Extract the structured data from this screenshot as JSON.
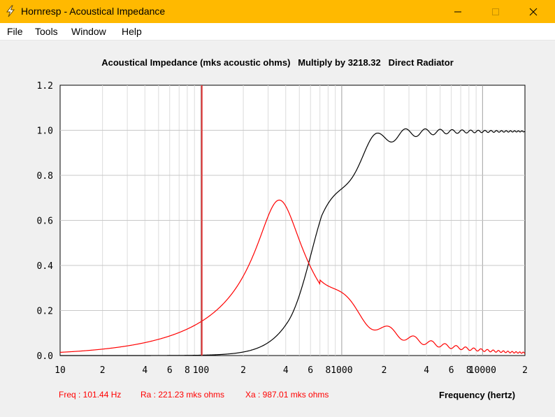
{
  "window": {
    "title": "Hornresp - Acoustical Impedance",
    "icon": "lightning-bolt-icon",
    "accent": "#ffb900"
  },
  "menu": [
    "File",
    "Tools",
    "Window",
    "Help"
  ],
  "chart_data": {
    "type": "line",
    "title": "Acoustical Impedance (mks acoustic ohms)   Multiply by 3218.32   Direct Radiator",
    "xlabel": "Frequency (hertz)",
    "ylabel": "",
    "xscale": "log",
    "xlim": [
      10,
      20000
    ],
    "ylim": [
      0,
      1.2
    ],
    "yticks": [
      "0.0",
      "0.2",
      "0.4",
      "0.6",
      "0.8",
      "1.0",
      "1.2"
    ],
    "xticks": [
      {
        "value": 10,
        "label": "10"
      },
      {
        "value": 20,
        "label": "2"
      },
      {
        "value": 40,
        "label": "4"
      },
      {
        "value": 60,
        "label": "6"
      },
      {
        "value": 80,
        "label": "8"
      },
      {
        "value": 100,
        "label": "100"
      },
      {
        "value": 200,
        "label": "2"
      },
      {
        "value": 400,
        "label": "4"
      },
      {
        "value": 600,
        "label": "6"
      },
      {
        "value": 800,
        "label": "8"
      },
      {
        "value": 1000,
        "label": "1000"
      },
      {
        "value": 2000,
        "label": "2"
      },
      {
        "value": 4000,
        "label": "4"
      },
      {
        "value": 6000,
        "label": "6"
      },
      {
        "value": 8000,
        "label": "8"
      },
      {
        "value": 10000,
        "label": "10000"
      },
      {
        "value": 20000,
        "label": "2"
      }
    ],
    "grid": true,
    "cursor_x": 101.44,
    "series": [
      {
        "color": "#000000"
      },
      {
        "color": "#ff0000"
      }
    ]
  },
  "readout": {
    "freq": "Freq : 101.44 Hz",
    "ra": "Ra : 221.23 mks ohms",
    "xa": "Xa : 987.01 mks ohms"
  }
}
